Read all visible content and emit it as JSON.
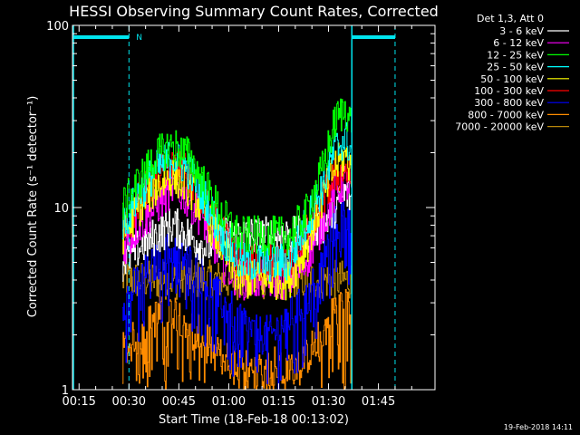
{
  "chart_data": {
    "type": "line",
    "title": "HESSI Observing Summary Count Rates, Corrected",
    "xlabel": "Start Time (18-Feb-18 00:13:02)",
    "ylabel": "Corrected Count Rate (s⁻¹ detector⁻¹)",
    "x_ticks": [
      "00:15",
      "00:30",
      "00:45",
      "01:00",
      "01:15",
      "01:30",
      "01:45"
    ],
    "x_tick_minutes": [
      15,
      30,
      45,
      60,
      75,
      90,
      105
    ],
    "xlim_minutes": [
      13.03,
      122
    ],
    "y_scale": "log",
    "ylim": [
      1,
      100
    ],
    "y_ticks": [
      "1",
      "10",
      "100"
    ],
    "legend_position": "right",
    "legend_header": "Det 1,3, Att 0",
    "night_flag": "N",
    "cyan_markers_minutes": [
      13.03,
      30,
      97,
      110
    ],
    "cyan_solid_bars": [
      {
        "from_minutes": 13.03,
        "to_minutes": 30
      },
      {
        "from_minutes": 97,
        "to_minutes": 110
      }
    ],
    "data_window_minutes": [
      28,
      97
    ],
    "series": [
      {
        "name": "3 - 6 keV",
        "color": "#ffffff",
        "x": [
          28,
          33,
          38,
          43,
          48,
          53,
          58,
          63,
          68,
          73,
          78,
          83,
          88,
          92,
          95,
          97
        ],
        "values": [
          5,
          6,
          7,
          8,
          7,
          6,
          7,
          7,
          7,
          7,
          7,
          7,
          8,
          10,
          12,
          11
        ]
      },
      {
        "name": "6 - 12 keV",
        "color": "#ff00ff",
        "x": [
          28,
          33,
          38,
          43,
          48,
          53,
          58,
          63,
          68,
          73,
          78,
          83,
          88,
          92,
          95,
          97
        ],
        "values": [
          6,
          8,
          10,
          13,
          11,
          8,
          5,
          4,
          4,
          4,
          4,
          5,
          8,
          12,
          14,
          12
        ]
      },
      {
        "name": "12 - 25 keV",
        "color": "#00ff00",
        "x": [
          28,
          33,
          38,
          43,
          48,
          53,
          58,
          63,
          68,
          73,
          78,
          83,
          88,
          92,
          95,
          97
        ],
        "values": [
          10,
          14,
          19,
          22,
          19,
          13,
          9,
          7,
          7,
          7,
          7,
          9,
          16,
          30,
          35,
          28
        ]
      },
      {
        "name": "25 - 50 keV",
        "color": "#00ffff",
        "x": [
          28,
          33,
          38,
          43,
          48,
          53,
          58,
          63,
          68,
          73,
          78,
          83,
          88,
          92,
          95,
          97
        ],
        "values": [
          8,
          12,
          16,
          19,
          16,
          11,
          7,
          5,
          5,
          5,
          5,
          8,
          13,
          21,
          24,
          20
        ]
      },
      {
        "name": "50 - 100 keV",
        "color": "#ffff00",
        "x": [
          28,
          33,
          38,
          43,
          48,
          53,
          58,
          63,
          68,
          73,
          78,
          83,
          88,
          92,
          95,
          97
        ],
        "values": [
          7,
          10,
          13,
          15,
          13,
          9,
          6,
          4,
          4,
          4,
          4,
          6,
          11,
          17,
          19,
          16
        ]
      },
      {
        "name": "100 - 300 keV",
        "color": "#ff0000",
        "x": [
          28,
          33,
          38,
          43,
          48,
          53,
          58,
          63,
          68,
          73,
          78,
          83,
          88,
          92,
          95,
          97
        ],
        "values": [
          7,
          11,
          15,
          17,
          15,
          10,
          7,
          5,
          5,
          5,
          5,
          7,
          11,
          15,
          16,
          14
        ]
      },
      {
        "name": "300 - 800 keV",
        "color": "#0000ff",
        "x": [
          28,
          33,
          38,
          43,
          48,
          53,
          58,
          63,
          68,
          73,
          78,
          83,
          88,
          92,
          95,
          97
        ],
        "values": [
          3,
          4,
          5,
          6,
          5,
          4,
          3,
          2.5,
          2,
          2,
          2.5,
          3,
          5,
          8,
          10,
          7
        ]
      },
      {
        "name": "800 - 7000 keV",
        "color": "#ff8c00",
        "x": [
          28,
          33,
          38,
          43,
          48,
          53,
          58,
          63,
          68,
          73,
          78,
          83,
          88,
          92,
          95,
          97
        ],
        "values": [
          1.6,
          2,
          2.5,
          2.8,
          2.3,
          1.8,
          1.5,
          1.3,
          1.2,
          1.2,
          1.3,
          1.5,
          2,
          2.8,
          3,
          2.5
        ]
      },
      {
        "name": "7000 - 20000 keV",
        "color": "#b8860b",
        "x": [
          28,
          33,
          38,
          43,
          48,
          53,
          58,
          63,
          68,
          73,
          78,
          83,
          88,
          92,
          95,
          97
        ],
        "values": [
          4,
          4,
          4,
          4,
          4,
          4,
          4,
          4,
          4,
          4,
          4,
          4,
          4,
          4,
          4,
          4
        ]
      }
    ]
  },
  "footer": {
    "timestamp": "19-Feb-2018 14:11"
  }
}
